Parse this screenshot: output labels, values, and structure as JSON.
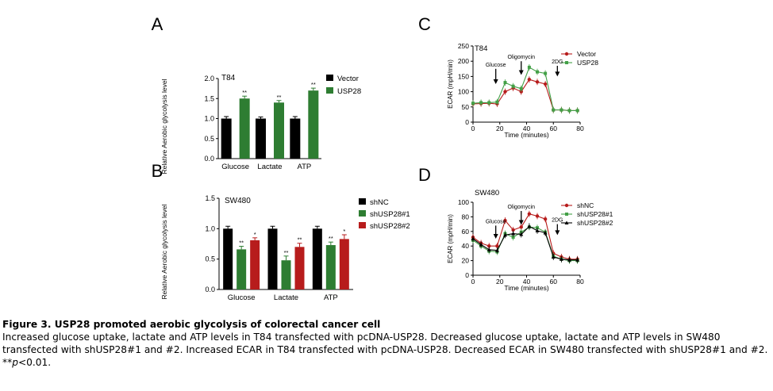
{
  "caption": {
    "title": "Figure 3. USP28 promoted aerobic glycolysis of colorectal cancer cell",
    "text": "Increased glucose uptake, lactate and ATP levels in T84 transfected with pcDNA-USP28. Decreased glucose uptake, lactate and ATP levels in SW480 transfected with shUSP28#1 and #2. Increased ECAR in T84 transfected with pcDNA-USP28. Decreased ECAR in SW480 transfected with shUSP28#1 and #2. **",
    "p_symbol": "p",
    "p_value": "<0.01."
  },
  "chart_data": [
    {
      "panel": "A",
      "type": "bar",
      "cell_line": "T84",
      "ylabel": "Relative Aerobic glycolysis level",
      "categories": [
        "Glucose",
        "Lactate",
        "ATP"
      ],
      "ylim": [
        0,
        2.0
      ],
      "yticks": [
        "0.0",
        "0.5",
        "1.0",
        "1.5",
        "2.0"
      ],
      "legend_position": "top-right",
      "series": [
        {
          "name": "Vector",
          "color": "#000000",
          "values": [
            1.0,
            1.0,
            1.0
          ],
          "errors": [
            0.05,
            0.04,
            0.05
          ],
          "annotations": [
            "",
            "",
            ""
          ]
        },
        {
          "name": "USP28",
          "color": "#2e7d32",
          "values": [
            1.5,
            1.4,
            1.7
          ],
          "errors": [
            0.06,
            0.05,
            0.06
          ],
          "annotations": [
            "**",
            "**",
            "**"
          ]
        }
      ]
    },
    {
      "panel": "B",
      "type": "bar",
      "cell_line": "SW480",
      "ylabel": "Relative Aerobic glycolysis level",
      "categories": [
        "Glucose",
        "Lactate",
        "ATP"
      ],
      "ylim": [
        0,
        1.5
      ],
      "yticks": [
        "0.0",
        "0.5",
        "1.0",
        "1.5"
      ],
      "legend_position": "top-right",
      "series": [
        {
          "name": "shNC",
          "color": "#000000",
          "values": [
            1.0,
            1.0,
            1.0
          ],
          "errors": [
            0.04,
            0.04,
            0.04
          ],
          "annotations": [
            "",
            "",
            ""
          ]
        },
        {
          "name": "shUSP28#1",
          "color": "#2e7d32",
          "values": [
            0.66,
            0.48,
            0.73
          ],
          "errors": [
            0.05,
            0.07,
            0.05
          ],
          "annotations": [
            "**",
            "**",
            "**"
          ]
        },
        {
          "name": "shUSP28#2",
          "color": "#b71c1c",
          "values": [
            0.81,
            0.7,
            0.83
          ],
          "errors": [
            0.04,
            0.06,
            0.07
          ],
          "annotations": [
            "*",
            "**",
            "*"
          ]
        }
      ]
    },
    {
      "panel": "C",
      "type": "line",
      "cell_line": "T84",
      "xlabel": "Time (minutes)",
      "ylabel": "ECAR (mpH/min)",
      "xlim": [
        0,
        80
      ],
      "ylim": [
        0,
        250
      ],
      "xticks": [
        "0",
        "20",
        "40",
        "60",
        "80"
      ],
      "yticks": [
        "0",
        "50",
        "100",
        "150",
        "200",
        "250"
      ],
      "legend_position": "top-right",
      "x": [
        0,
        6,
        12,
        18,
        24,
        30,
        36,
        42,
        48,
        54,
        60,
        66,
        72,
        78
      ],
      "injections": [
        {
          "label": "Glucose",
          "x": 17,
          "y_from": 175,
          "y_to": 125
        },
        {
          "label": "Oligomycin",
          "x": 36,
          "y_from": 200,
          "y_to": 155
        },
        {
          "label": "2DG",
          "x": 63,
          "y_from": 185,
          "y_to": 150
        }
      ],
      "series": [
        {
          "name": "Vector",
          "color": "#b71c1c",
          "marker": "circle",
          "values": [
            60,
            61,
            62,
            60,
            100,
            112,
            100,
            140,
            132,
            125,
            40,
            40,
            38,
            38
          ]
        },
        {
          "name": "USP28",
          "color": "#43a047",
          "marker": "square",
          "values": [
            62,
            64,
            64,
            66,
            130,
            118,
            110,
            180,
            165,
            160,
            40,
            40,
            38,
            38
          ]
        }
      ]
    },
    {
      "panel": "D",
      "type": "line",
      "cell_line": "SW480",
      "xlabel": "Time (minutes)",
      "ylabel": "ECAR (mpH/min)",
      "xlim": [
        0,
        80
      ],
      "ylim": [
        0,
        100
      ],
      "xticks": [
        "0",
        "20",
        "40",
        "60",
        "80"
      ],
      "yticks": [
        "0",
        "20",
        "40",
        "60",
        "80",
        "100"
      ],
      "legend_position": "top-right",
      "x": [
        0,
        6,
        12,
        18,
        24,
        30,
        36,
        42,
        48,
        54,
        60,
        66,
        72,
        78
      ],
      "injections": [
        {
          "label": "Glucose",
          "x": 17,
          "y_from": 68,
          "y_to": 50
        },
        {
          "label": "Oligomycin",
          "x": 36,
          "y_from": 88,
          "y_to": 69
        },
        {
          "label": "2DG",
          "x": 63,
          "y_from": 70,
          "y_to": 55
        }
      ],
      "series": [
        {
          "name": "shNC",
          "color": "#b71c1c",
          "marker": "circle",
          "values": [
            52,
            44,
            40,
            40,
            75,
            62,
            66,
            84,
            81,
            77,
            30,
            25,
            22,
            22
          ]
        },
        {
          "name": "shUSP28#1",
          "color": "#43a047",
          "marker": "square",
          "values": [
            48,
            40,
            33,
            32,
            57,
            52,
            59,
            66,
            65,
            59,
            26,
            22,
            20,
            20
          ]
        },
        {
          "name": "shUSP28#2",
          "color": "#000000",
          "marker": "triangle",
          "values": [
            50,
            42,
            35,
            34,
            55,
            57,
            56,
            67,
            61,
            58,
            25,
            22,
            21,
            21
          ]
        }
      ]
    }
  ],
  "panel_labels": [
    "A",
    "B",
    "C",
    "D"
  ]
}
